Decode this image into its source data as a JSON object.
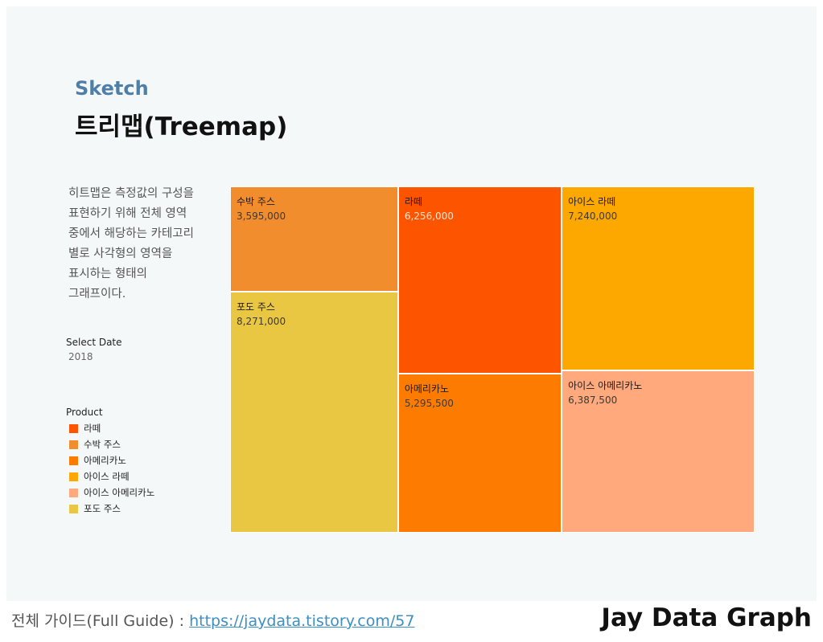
{
  "header": {
    "sketch": "Sketch",
    "title": "트리맵(Treemap)"
  },
  "description": [
    "히트맵은 측정값의 구성을",
    "표현하기 위해 전체 영역",
    "중에서 해당하는 카테고리",
    "별로 사각형의 영역을",
    "표시하는 형태의",
    "그래프이다."
  ],
  "filter": {
    "label": "Select Date",
    "value": "2018"
  },
  "legend": {
    "title": "Product",
    "items": [
      {
        "label": "라떼",
        "color": "#fd5400"
      },
      {
        "label": "수박 주스",
        "color": "#f18d2c"
      },
      {
        "label": "아메리카노",
        "color": "#fd7c00"
      },
      {
        "label": "아이스 라떼",
        "color": "#fca800"
      },
      {
        "label": "아이스 아메리카노",
        "color": "#ffa97d"
      },
      {
        "label": "포도 주스",
        "color": "#eac742"
      }
    ]
  },
  "chart_data": {
    "type": "treemap",
    "title": "",
    "items": [
      {
        "name": "수박 주스",
        "value": 3595000,
        "label": "3,595,000",
        "color": "#f18d2c"
      },
      {
        "name": "포도 주스",
        "value": 8271000,
        "label": "8,271,000",
        "color": "#eac742"
      },
      {
        "name": "라떼",
        "value": 6256000,
        "label": "6,256,000",
        "color": "#fd5400"
      },
      {
        "name": "아메리카노",
        "value": 5295500,
        "label": "5,295,500",
        "color": "#fd7c00"
      },
      {
        "name": "아이스 라떼",
        "value": 7240000,
        "label": "7,240,000",
        "color": "#fca800"
      },
      {
        "name": "아이스 아메리카노",
        "value": 6387500,
        "label": "6,387,500",
        "color": "#ffa97d"
      }
    ]
  },
  "footer": {
    "guide_prefix": "전체 가이드(Full Guide) : ",
    "guide_link": "https://jaydata.tistory.com/57",
    "brand": "Jay Data Graph"
  }
}
